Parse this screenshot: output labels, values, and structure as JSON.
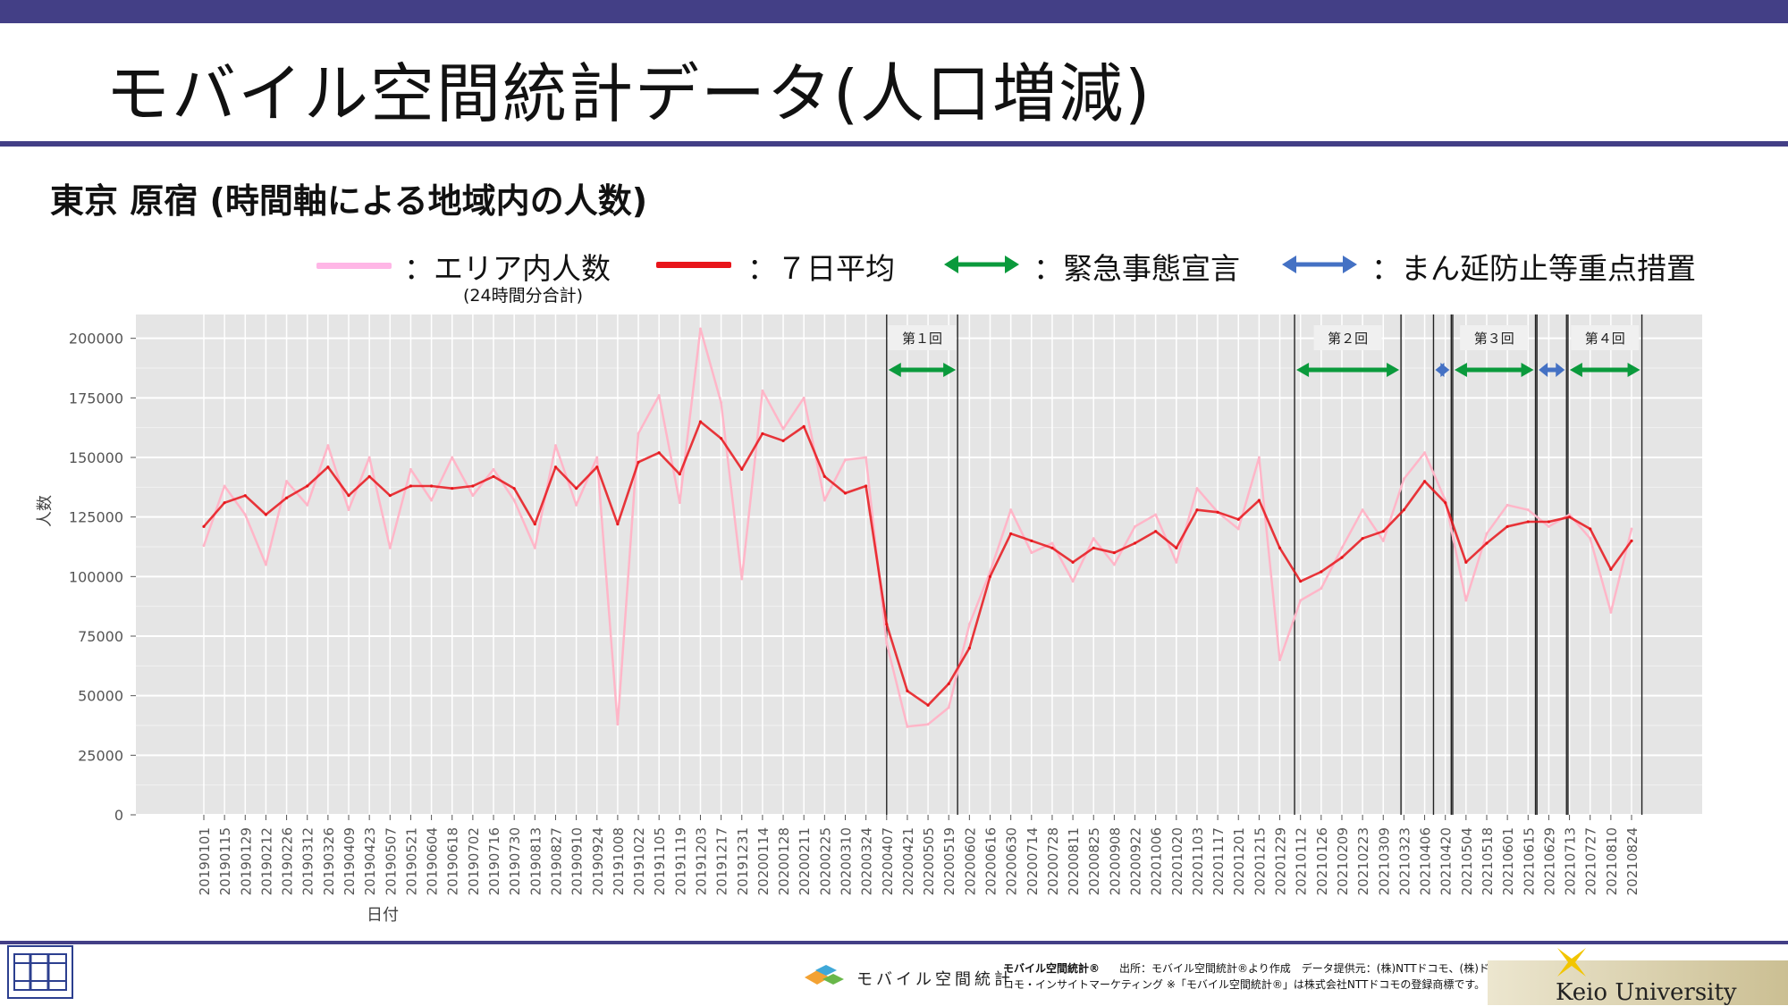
{
  "page": {
    "title": "モバイル空間統計データ(人口増減)",
    "subtitle": "東京 原宿 (時間軸による地域内の人数)"
  },
  "legend": {
    "items": [
      {
        "label": "：エリア内人数",
        "color": "#ffb6e6"
      },
      {
        "label": "：７日平均",
        "color": "#e8151b"
      },
      {
        "label": "：緊急事態宣言",
        "color": "#0a9a3c"
      },
      {
        "label": "：まん延防止等重点措置",
        "color": "#4471c4"
      }
    ],
    "note": "(24時間分合計)"
  },
  "footer": {
    "logo_text": "モバイル空間統計",
    "brand": "モバイル空間統計®",
    "source_line1": "出所：モバイル空間統計®より作成　データ提供元：(株)NTTドコモ、(株)ド",
    "source_line2": "コモ・インサイトマーケティング ※「モバイル空間統計®」は株式会社NTTドコモの登録商標です。",
    "university": "Keio University"
  },
  "chart_data": {
    "type": "line",
    "xlabel": "日付",
    "ylabel": "人数",
    "ylim": [
      0,
      210000
    ],
    "yticks": [
      0,
      25000,
      50000,
      75000,
      100000,
      125000,
      150000,
      175000,
      200000
    ],
    "grid": true,
    "x_ticks": [
      "20190101",
      "20190115",
      "20190129",
      "20190212",
      "20190226",
      "20190312",
      "20190326",
      "20190409",
      "20190423",
      "20190507",
      "20190521",
      "20190604",
      "20190618",
      "20190702",
      "20190716",
      "20190730",
      "20190813",
      "20190827",
      "20190910",
      "20190924",
      "20191008",
      "20191022",
      "20191105",
      "20191119",
      "20191203",
      "20191217",
      "20191231",
      "20200114",
      "20200128",
      "20200211",
      "20200225",
      "20200310",
      "20200324",
      "20200407",
      "20200421",
      "20200505",
      "20200519",
      "20200602",
      "20200616",
      "20200630",
      "20200714",
      "20200728",
      "20200811",
      "20200825",
      "20200908",
      "20200922",
      "20201006",
      "20201020",
      "20201103",
      "20201117",
      "20201201",
      "20201215",
      "20201229",
      "20210112",
      "20210126",
      "20210209",
      "20210223",
      "20210309",
      "20210323",
      "20210406",
      "20210420",
      "20210504",
      "20210518",
      "20210601",
      "20210615",
      "20210629",
      "20210713",
      "20210727",
      "20210810",
      "20210824"
    ],
    "series": [
      {
        "name": "７日平均",
        "color": "#e8151b",
        "x": [
          "20190101",
          "20190115",
          "20190129",
          "20190212",
          "20190226",
          "20190312",
          "20190326",
          "20190409",
          "20190423",
          "20190507",
          "20190521",
          "20190604",
          "20190618",
          "20190702",
          "20190716",
          "20190730",
          "20190813",
          "20190827",
          "20190910",
          "20190924",
          "20191008",
          "20191022",
          "20191105",
          "20191119",
          "20191203",
          "20191217",
          "20191231",
          "20200114",
          "20200128",
          "20200211",
          "20200225",
          "20200310",
          "20200324",
          "20200407",
          "20200421",
          "20200505",
          "20200519",
          "20200602",
          "20200616",
          "20200630",
          "20200714",
          "20200728",
          "20200811",
          "20200825",
          "20200908",
          "20200922",
          "20201006",
          "20201020",
          "20201103",
          "20201117",
          "20201201",
          "20201215",
          "20201229",
          "20210112",
          "20210126",
          "20210209",
          "20210223",
          "20210309",
          "20210323",
          "20210406",
          "20210420",
          "20210504",
          "20210518",
          "20210601",
          "20210615",
          "20210629",
          "20210713",
          "20210727",
          "20210810",
          "20210824"
        ],
        "values": [
          121000,
          131000,
          134000,
          126000,
          133000,
          138000,
          146000,
          134000,
          142000,
          134000,
          138000,
          138000,
          137000,
          138000,
          142000,
          137000,
          122000,
          146000,
          137000,
          146000,
          122000,
          148000,
          152000,
          143000,
          165000,
          158000,
          145000,
          160000,
          157000,
          163000,
          142000,
          135000,
          138000,
          80000,
          52000,
          46000,
          55000,
          70000,
          100000,
          118000,
          115000,
          112000,
          106000,
          112000,
          110000,
          114000,
          119000,
          112000,
          128000,
          127000,
          124000,
          132000,
          112000,
          98000,
          102000,
          108000,
          116000,
          119000,
          128000,
          140000,
          131000,
          106000,
          114000,
          121000,
          123000,
          123000,
          125000,
          120000,
          103000,
          115000
        ]
      },
      {
        "name": "エリア内人数",
        "color": "#ffb6c8",
        "x": [
          "20190101",
          "20190115",
          "20190129",
          "20190212",
          "20190226",
          "20190312",
          "20190326",
          "20190409",
          "20190423",
          "20190507",
          "20190521",
          "20190604",
          "20190618",
          "20190702",
          "20190716",
          "20190730",
          "20190813",
          "20190827",
          "20190910",
          "20190924",
          "20191008",
          "20191022",
          "20191105",
          "20191119",
          "20191203",
          "20191217",
          "20191231",
          "20200114",
          "20200128",
          "20200211",
          "20200225",
          "20200310",
          "20200324",
          "20200407",
          "20200421",
          "20200505",
          "20200519",
          "20200602",
          "20200616",
          "20200630",
          "20200714",
          "20200728",
          "20200811",
          "20200825",
          "20200908",
          "20200922",
          "20201006",
          "20201020",
          "20201103",
          "20201117",
          "20201201",
          "20201215",
          "20201229",
          "20210112",
          "20210126",
          "20210209",
          "20210223",
          "20210309",
          "20210323",
          "20210406",
          "20210420",
          "20210504",
          "20210518",
          "20210601",
          "20210615",
          "20210629",
          "20210713",
          "20210727",
          "20210810",
          "20210824"
        ],
        "values": [
          113000,
          138000,
          126000,
          105000,
          140000,
          130000,
          155000,
          128000,
          150000,
          112000,
          145000,
          132000,
          150000,
          134000,
          145000,
          132000,
          112000,
          155000,
          130000,
          150000,
          38000,
          160000,
          176000,
          131000,
          204000,
          173000,
          99000,
          178000,
          162000,
          175000,
          132000,
          149000,
          150000,
          72000,
          37000,
          38000,
          45000,
          80000,
          102000,
          128000,
          110000,
          114000,
          98000,
          116000,
          105000,
          121000,
          126000,
          106000,
          137000,
          127000,
          120000,
          150000,
          65000,
          90000,
          95000,
          112000,
          128000,
          115000,
          141000,
          152000,
          132000,
          90000,
          118000,
          130000,
          128000,
          121000,
          126000,
          116000,
          85000,
          120000
        ]
      }
    ],
    "periods": [
      {
        "label": "第１回",
        "type": "緊急事態宣言",
        "start": "20200407",
        "end": "20200525"
      },
      {
        "label": "第２回",
        "type": "緊急事態宣言",
        "start": "20210108",
        "end": "20210321"
      },
      {
        "label": "",
        "type": "まん延防止等重点措置",
        "start": "20210412",
        "end": "20210424"
      },
      {
        "label": "第３回",
        "type": "緊急事態宣言",
        "start": "20210425",
        "end": "20210620"
      },
      {
        "label": "",
        "type": "まん延防止等重点措置",
        "start": "20210621",
        "end": "20210711"
      },
      {
        "label": "第４回",
        "type": "緊急事態宣言",
        "start": "20210712",
        "end": "20210831"
      }
    ]
  }
}
